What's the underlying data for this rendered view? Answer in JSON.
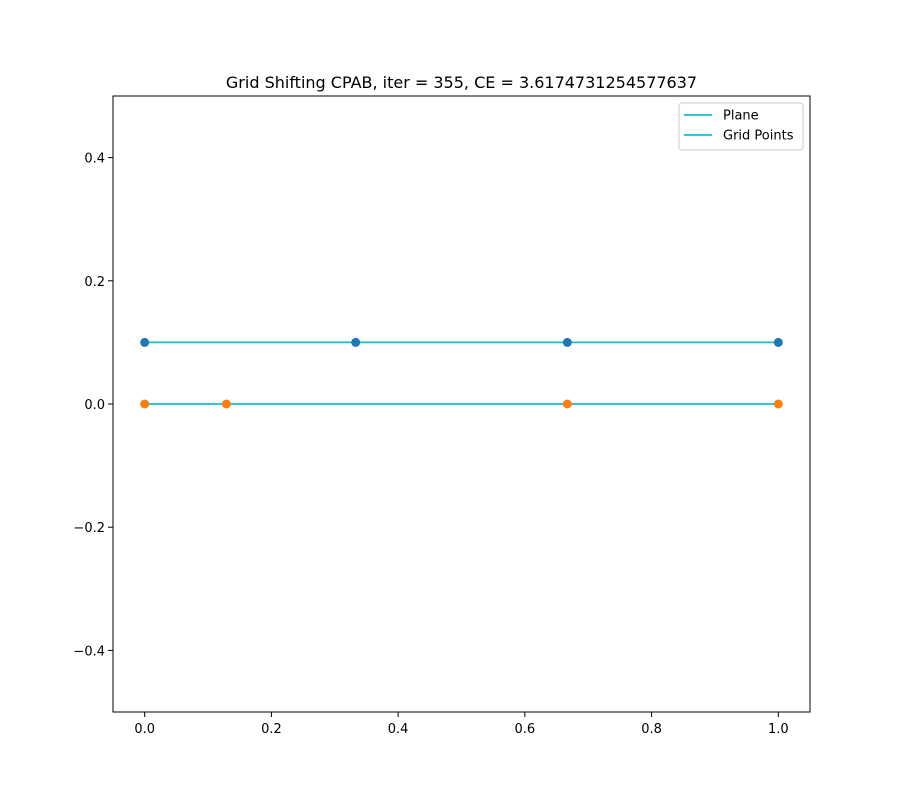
{
  "chart_data": {
    "type": "line",
    "title": "Grid Shifting CPAB, iter = 355, CE = 3.6174731254577637",
    "xlabel": "",
    "ylabel": "",
    "xlim": [
      -0.05,
      1.05
    ],
    "ylim": [
      -0.5,
      0.5
    ],
    "x_ticks": [
      0.0,
      0.2,
      0.4,
      0.6,
      0.8,
      1.0
    ],
    "x_tick_labels": [
      "0.0",
      "0.2",
      "0.4",
      "0.6",
      "0.8",
      "1.0"
    ],
    "y_ticks": [
      -0.4,
      -0.2,
      0.0,
      0.2,
      0.4
    ],
    "y_tick_labels": [
      "−0.4",
      "−0.2",
      "0.0",
      "0.2",
      "0.4"
    ],
    "grid": false,
    "legend_position": "upper right",
    "legend": [
      {
        "label": "Plane",
        "color": "#17becf"
      },
      {
        "label": "Grid Points",
        "color": "#17becf"
      }
    ],
    "series": [
      {
        "name": "Plane",
        "line_color": "#17becf",
        "marker_color": "#1f77b4",
        "x": [
          0.0,
          0.333,
          0.667,
          1.0
        ],
        "y": [
          0.1,
          0.1,
          0.1,
          0.1
        ]
      },
      {
        "name": "Grid Points",
        "line_color": "#17becf",
        "marker_color": "#ff7f0e",
        "x": [
          0.0,
          0.129,
          0.667,
          1.0
        ],
        "y": [
          0.0,
          0.0,
          0.0,
          0.0
        ]
      }
    ]
  }
}
